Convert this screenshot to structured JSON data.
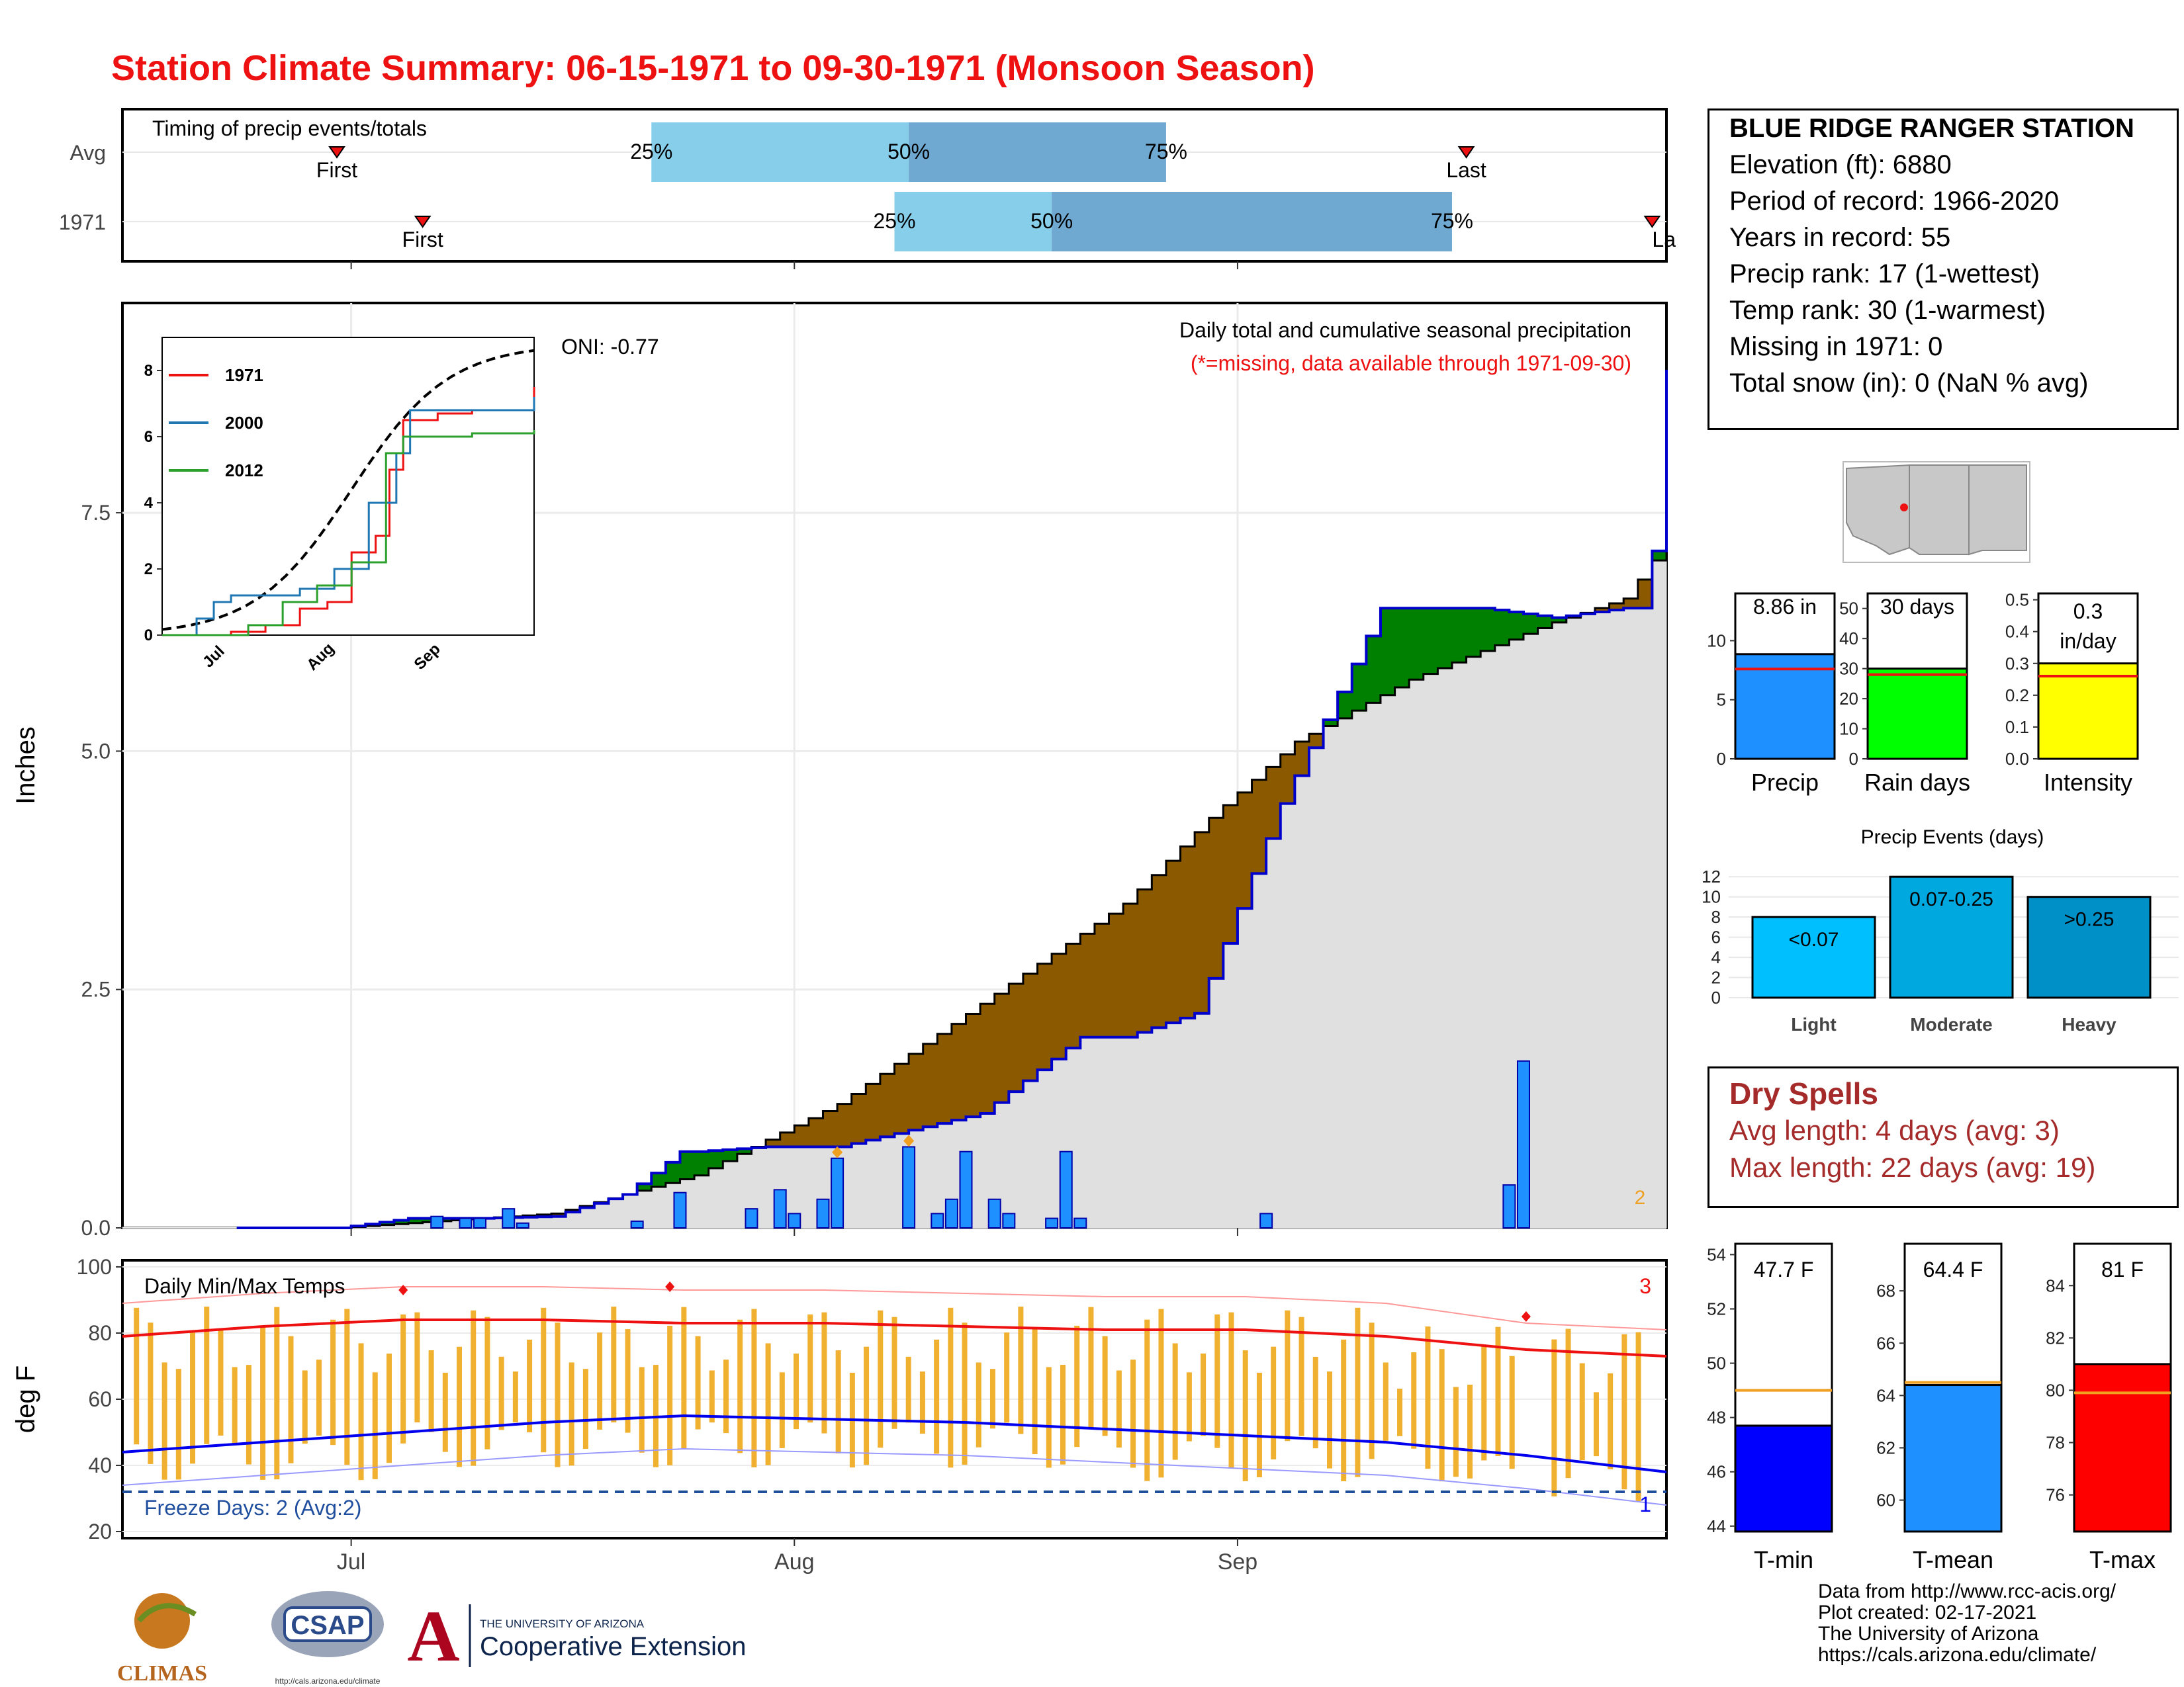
{
  "title": "Station Climate Summary: 06-15-1971 to 09-30-1971 (Monsoon Season)",
  "colors": {
    "title": "#ee1111",
    "deficit": "#8b5a00",
    "surplus": "#008000",
    "avg_fill": "#e0e0e0",
    "obs_line": "#0000cc",
    "bar": "#1e90ff",
    "temp_bar": "#f0b030",
    "tmax_avg": "#ee1111",
    "tmin_avg": "#0000ee"
  },
  "station": {
    "name": "BLUE RIDGE RANGER STATION",
    "elevation": "Elevation (ft): 6880",
    "period": "Period of record: 1966-2020",
    "years": "Years in record: 55",
    "precip_rank": "Precip rank: 17 (1-wettest)",
    "temp_rank": "Temp rank: 30 (1-warmest)",
    "missing": "Missing in 1971: 0",
    "snow": "Total snow (in): 0 (NaN % avg)"
  },
  "timing": {
    "label": "Timing of precip events/totals",
    "rows": [
      {
        "name": "Avg",
        "first": "2021-06-30",
        "last": "2021-09-17",
        "p25": "2021-07-22",
        "p50": "2021-08-09",
        "p75": "2021-08-27"
      },
      {
        "name": "1971",
        "first": "2021-07-06",
        "last": "2021-09-30",
        "p25": "2021-08-08",
        "p50": "2021-08-19",
        "p75": "2021-09-16"
      }
    ],
    "first_label": "First",
    "last_label": "Last",
    "last_label_trunc": "La",
    "p25": "25%",
    "p50": "50%",
    "p75": "75%"
  },
  "precip": {
    "ylabel": "Inches",
    "yticks": [
      "0.0",
      "2.5",
      "5.0",
      "7.5"
    ],
    "oni": "ONI: -0.77",
    "note1": "Daily total and cumulative seasonal precipitation",
    "note2": "(*=missing, data available through 1971-09-30)",
    "count_label": "2"
  },
  "inset": {
    "yticks": [
      "0",
      "2",
      "4",
      "6",
      "8"
    ],
    "xticks": [
      "Jul",
      "Aug",
      "Sep"
    ],
    "legend": [
      {
        "name": "1971",
        "color": "#ee1111"
      },
      {
        "name": "2000",
        "color": "#1f77b4"
      },
      {
        "name": "2012",
        "color": "#2ca02c"
      }
    ]
  },
  "temps": {
    "ylabel": "deg F",
    "label": "Daily Min/Max Temps",
    "yticks": [
      "20",
      "40",
      "60",
      "80",
      "100"
    ],
    "freeze": "Freeze Days: 2 (Avg:2)",
    "count_hi": "3",
    "count_lo": "1"
  },
  "xaxis": {
    "labels": [
      "Jul",
      "Aug",
      "Sep"
    ]
  },
  "mini_bars": [
    {
      "name": "Precip",
      "value_label": "8.86 in",
      "ticks": [
        "0",
        "5",
        "10"
      ]
    },
    {
      "name": "Rain days",
      "value_label": "30 days",
      "ticks": [
        "0",
        "10",
        "20",
        "30",
        "40",
        "50"
      ]
    },
    {
      "name": "Intensity",
      "value_label": "0.3",
      "value_label2": "in/day",
      "ticks": [
        "0.0",
        "0.1",
        "0.2",
        "0.3",
        "0.4",
        "0.5"
      ]
    }
  ],
  "events": {
    "title": "Precip Events (days)",
    "ticks": [
      "0",
      "2",
      "4",
      "6",
      "8",
      "10",
      "12"
    ],
    "bars": [
      {
        "cat": "Light",
        "label": "<0.07",
        "value": 8
      },
      {
        "cat": "Moderate",
        "label": "0.07-0.25",
        "value": 12
      },
      {
        "cat": "Heavy",
        "label": ">0.25",
        "value": 10
      }
    ]
  },
  "dry": {
    "title": "Dry Spells",
    "avg": "Avg length: 4 days (avg: 3)",
    "max": "Max length: 22 days (avg: 19)"
  },
  "temp_bars": [
    {
      "name": "T-min",
      "value_label": "47.7 F",
      "ticks": [
        "44",
        "46",
        "48",
        "50",
        "52",
        "54"
      ]
    },
    {
      "name": "T-mean",
      "value_label": "64.4 F",
      "ticks": [
        "60",
        "62",
        "64",
        "66",
        "68"
      ]
    },
    {
      "name": "T-max",
      "value_label": "81 F",
      "ticks": [
        "76",
        "78",
        "80",
        "82",
        "84"
      ]
    }
  ],
  "credits": [
    "Data from http://www.rcc-acis.org/",
    "Plot created: 02-17-2021",
    "The University of Arizona",
    "https://cals.arizona.edu/climate/"
  ],
  "logos": {
    "climas": "CLIMAS",
    "csap": "CSAP",
    "csap_url": "http://cals.arizona.edu/climate",
    "ua": "A",
    "ua_line1": "THE UNIVERSITY OF ARIZONA",
    "ua_line2": "Cooperative Extension"
  },
  "chart_data": [
    {
      "type": "area",
      "title": "Daily total and cumulative seasonal precipitation",
      "ylabel": "Inches",
      "ylim": [
        0,
        9.7
      ],
      "x_range": [
        "1971-06-15",
        "1971-09-30"
      ],
      "cumulative_1971": [
        [
          15,
          0.0
        ],
        [
          20,
          0.1
        ],
        [
          25,
          0.1
        ],
        [
          30,
          0.12
        ],
        [
          35,
          0.35
        ],
        [
          39,
          0.8
        ],
        [
          40,
          0.8
        ],
        [
          45,
          0.85
        ],
        [
          50,
          0.85
        ],
        [
          60,
          1.2
        ],
        [
          67,
          2.0
        ],
        [
          70,
          2.0
        ],
        [
          75,
          2.25
        ],
        [
          81,
          4.45
        ],
        [
          88,
          6.5
        ],
        [
          95,
          6.5
        ],
        [
          100,
          6.4
        ],
        [
          105,
          6.5
        ],
        [
          106,
          6.5
        ],
        [
          107,
          7.1
        ],
        [
          108,
          9.0
        ]
      ],
      "cumulative_avg": [
        [
          15,
          0.0
        ],
        [
          30,
          0.15
        ],
        [
          40,
          0.55
        ],
        [
          50,
          1.3
        ],
        [
          60,
          2.35
        ],
        [
          70,
          3.4
        ],
        [
          76,
          4.3
        ],
        [
          82,
          5.1
        ],
        [
          90,
          5.75
        ],
        [
          100,
          6.35
        ],
        [
          105,
          6.6
        ],
        [
          108,
          7.2
        ]
      ],
      "daily_1971": [
        [
          22,
          0.12
        ],
        [
          24,
          0.1
        ],
        [
          25,
          0.1
        ],
        [
          27,
          0.2
        ],
        [
          28,
          0.05
        ],
        [
          36,
          0.07
        ],
        [
          39,
          0.37
        ],
        [
          44,
          0.2
        ],
        [
          46,
          0.4
        ],
        [
          47,
          0.15
        ],
        [
          49,
          0.3
        ],
        [
          50,
          0.73
        ],
        [
          55,
          0.85
        ],
        [
          57,
          0.15
        ],
        [
          58,
          0.3
        ],
        [
          59,
          0.8
        ],
        [
          61,
          0.3
        ],
        [
          62,
          0.15
        ],
        [
          65,
          0.1
        ],
        [
          66,
          0.8
        ],
        [
          67,
          0.1
        ],
        [
          80,
          0.15
        ],
        [
          97,
          0.45
        ],
        [
          98,
          1.75
        ]
      ]
    },
    {
      "type": "line",
      "title": "Daily Min/Max Temps",
      "ylabel": "deg F",
      "ylim": [
        18,
        102
      ],
      "tmax_avg": [
        [
          0,
          79
        ],
        [
          10,
          82
        ],
        [
          20,
          84
        ],
        [
          30,
          84
        ],
        [
          40,
          83
        ],
        [
          50,
          83
        ],
        [
          60,
          82
        ],
        [
          70,
          81
        ],
        [
          80,
          81
        ],
        [
          90,
          79
        ],
        [
          100,
          75
        ],
        [
          110,
          73
        ]
      ],
      "tmin_avg": [
        [
          0,
          44
        ],
        [
          10,
          47
        ],
        [
          20,
          50
        ],
        [
          30,
          53
        ],
        [
          40,
          55
        ],
        [
          50,
          54
        ],
        [
          60,
          53
        ],
        [
          70,
          51
        ],
        [
          80,
          49
        ],
        [
          90,
          47
        ],
        [
          100,
          43
        ],
        [
          110,
          38
        ]
      ],
      "freeze_line": 32
    }
  ]
}
